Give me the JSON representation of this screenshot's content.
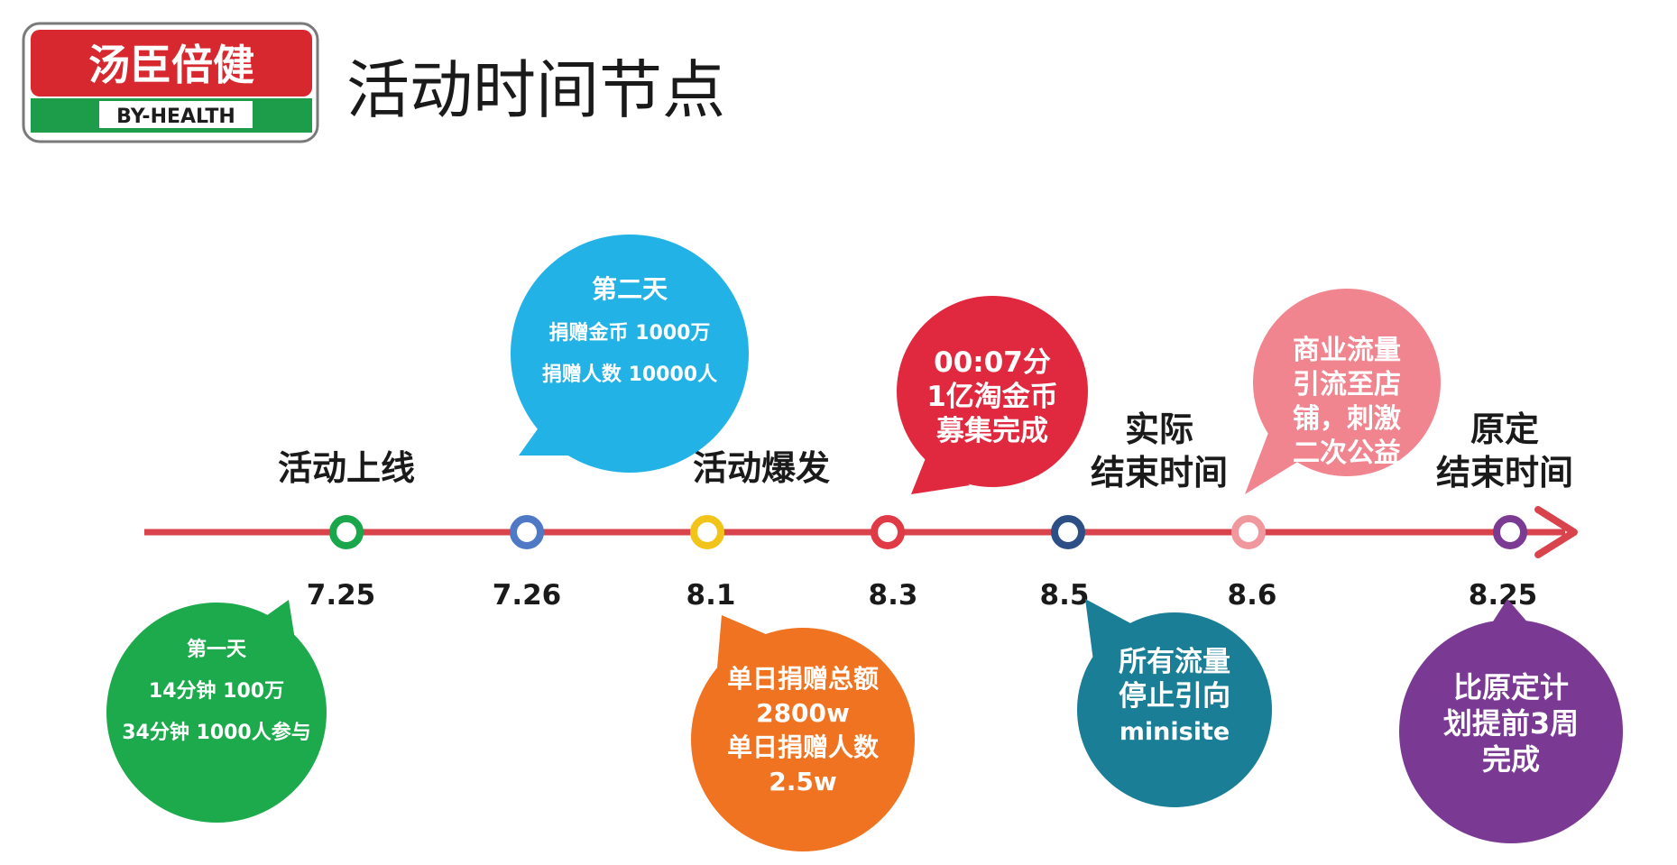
{
  "header": {
    "logo_cn": "汤臣倍健",
    "logo_en": "BY-HEALTH",
    "title": "活动时间节点"
  },
  "colors": {
    "timeline": "#d9434b",
    "logo_red": "#d7282f",
    "logo_green": "#1d9c4a"
  },
  "timeline": {
    "dates": [
      "7.25",
      "7.26",
      "8.1",
      "8.3",
      "8.5",
      "8.6",
      "8.25"
    ],
    "milestone_colors": [
      "#1aa64a",
      "#4f79c4",
      "#f2c318",
      "#e03a47",
      "#2d4f86",
      "#f0989d",
      "#7b3b93"
    ],
    "events": [
      {
        "lines": [
          "活动上线"
        ],
        "date_index": 0
      },
      {
        "lines": [
          "活动爆发"
        ],
        "date_index": 2
      },
      {
        "lines": [
          "实际",
          "结束时间"
        ],
        "date_index": 4
      },
      {
        "lines": [
          "原定",
          "结束时间"
        ],
        "date_index": 6
      }
    ]
  },
  "bubbles": [
    {
      "id": "day-two",
      "color": "#22b2e6",
      "lines": [
        "第二天",
        "捐赠金币  1000万",
        "捐赠人数  10000人"
      ]
    },
    {
      "id": "fundraise-done",
      "color": "#e0293f",
      "lines": [
        "00:07分",
        "1亿淘金币",
        "募集完成"
      ]
    },
    {
      "id": "commerce-traffic",
      "color": "#f0858f",
      "lines": [
        "商业流量",
        "引流至店",
        "铺，刺激",
        "二次公益"
      ]
    },
    {
      "id": "day-one",
      "color": "#1caa4c",
      "lines": [
        "第一天",
        "14分钟  100万",
        "34分钟  1000人参与"
      ]
    },
    {
      "id": "daily-donation",
      "color": "#ef7321",
      "lines": [
        "单日捐赠总额",
        "2800w",
        "单日捐赠人数",
        "2.5w"
      ]
    },
    {
      "id": "traffic-stop",
      "color": "#1a7f96",
      "lines": [
        "所有流量",
        "停止引向",
        "minisite"
      ]
    },
    {
      "id": "ahead-schedule",
      "color": "#7a3a93",
      "lines": [
        "比原定计",
        "划提前3周",
        "完成"
      ]
    }
  ]
}
